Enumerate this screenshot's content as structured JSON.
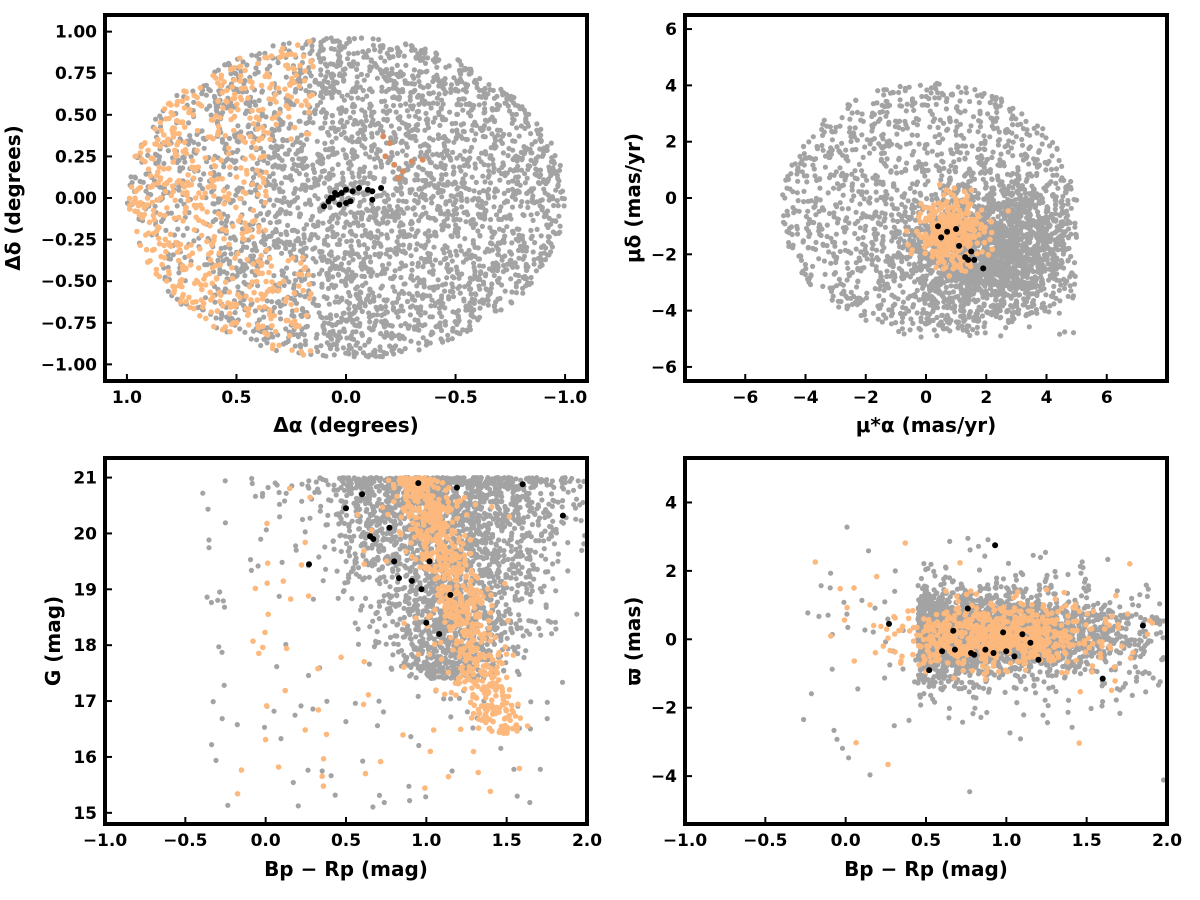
{
  "colors": {
    "field": "#a3a3a3",
    "member": "#fdb97d",
    "member_dark": "#d98c5f",
    "core": "#000000"
  },
  "chart_data": [
    {
      "type": "scatter",
      "panel": "top-left",
      "xlabel": "Δα (degrees)",
      "ylabel": "Δδ (degrees)",
      "xlim": [
        1.1,
        -1.1
      ],
      "ylim": [
        -1.1,
        1.1
      ],
      "x_inverted": true,
      "xticks": [
        1.0,
        0.5,
        0.0,
        -0.5,
        -1.0
      ],
      "xtick_labels": [
        "1.0",
        "0.5",
        "0.0",
        "−0.5",
        "−1.0"
      ],
      "yticks": [
        1.0,
        0.75,
        0.5,
        0.25,
        0.0,
        -0.25,
        -0.5,
        -0.75,
        -1.0
      ],
      "ytick_labels": [
        "1.00",
        "0.75",
        "0.50",
        "0.25",
        "0.00",
        "−0.25",
        "−0.50",
        "−0.75",
        "−1.00"
      ],
      "grid": false,
      "series": [
        {
          "role": "field",
          "description_points": "disk of radius 1 deg, ~3000 stars"
        },
        {
          "role": "members",
          "extent": "east half (Δα 0.2 to 1.0)"
        },
        {
          "role": "tidal-arm",
          "points": [
            [
              -0.18,
              0.25
            ],
            [
              -0.22,
              0.2
            ],
            [
              -0.26,
              0.16
            ],
            [
              -0.3,
              0.22
            ],
            [
              -0.35,
              0.23
            ],
            [
              -0.2,
              0.33
            ],
            [
              -0.17,
              0.37
            ],
            [
              -0.24,
              0.12
            ]
          ]
        },
        {
          "role": "core",
          "points": [
            [
              0.1,
              -0.05
            ],
            [
              0.08,
              -0.02
            ],
            [
              0.06,
              0.0
            ],
            [
              0.04,
              0.02
            ],
            [
              0.02,
              0.03
            ],
            [
              0.0,
              0.05
            ],
            [
              -0.03,
              0.04
            ],
            [
              -0.06,
              0.06
            ],
            [
              -0.1,
              0.05
            ],
            [
              -0.12,
              0.04
            ],
            [
              -0.16,
              0.06
            ],
            [
              0.0,
              -0.03
            ],
            [
              -0.02,
              -0.02
            ],
            [
              0.03,
              -0.04
            ],
            [
              0.07,
              0.0
            ],
            [
              -0.12,
              -0.01
            ],
            [
              0.05,
              0.03
            ]
          ]
        }
      ]
    },
    {
      "type": "scatter",
      "panel": "top-right",
      "xlabel": "μ*α  (mas/yr)",
      "ylabel": "μδ (mas/yr)",
      "xlim": [
        -8,
        8
      ],
      "ylim": [
        -6.5,
        6.5
      ],
      "xticks": [
        -6,
        -4,
        -2,
        0,
        2,
        4,
        6
      ],
      "xtick_labels": [
        "−6",
        "−4",
        "−2",
        "0",
        "2",
        "4",
        "6"
      ],
      "yticks": [
        6,
        4,
        2,
        0,
        -2,
        -4,
        -6
      ],
      "ytick_labels": [
        "6",
        "4",
        "2",
        "0",
        "−2",
        "−4",
        "−6"
      ],
      "grid": false,
      "series": [
        {
          "role": "field",
          "center": [
            1.9,
            -1.1
          ],
          "extent": "x -5 to 5, y -5 to 4.7"
        },
        {
          "role": "members",
          "center": [
            0.8,
            -1.2
          ]
        },
        {
          "role": "core",
          "points": [
            [
              0.4,
              -1.0
            ],
            [
              0.5,
              -1.4
            ],
            [
              1.0,
              -1.1
            ],
            [
              1.5,
              -1.9
            ],
            [
              1.4,
              -2.2
            ],
            [
              1.6,
              -2.2
            ],
            [
              1.9,
              -2.5
            ],
            [
              1.1,
              -1.7
            ],
            [
              0.7,
              -1.2
            ],
            [
              1.3,
              -2.1
            ]
          ]
        }
      ]
    },
    {
      "type": "scatter",
      "panel": "bottom-left",
      "xlabel": "Bp − Rp (mag)",
      "ylabel": "G (mag)",
      "xlim": [
        -1.0,
        2.0
      ],
      "ylim": [
        14.8,
        21.35
      ],
      "xticks": [
        -1.0,
        -0.5,
        0.0,
        0.5,
        1.0,
        1.5,
        2.0
      ],
      "xtick_labels": [
        "−1.0",
        "−0.5",
        "0.0",
        "0.5",
        "1.0",
        "1.5",
        "2.0"
      ],
      "yticks": [
        21,
        20,
        19,
        18,
        17,
        16,
        15
      ],
      "ytick_labels": [
        "21",
        "20",
        "19",
        "18",
        "17",
        "16",
        "15"
      ],
      "grid": false,
      "series": [
        {
          "role": "field"
        },
        {
          "role": "members"
        },
        {
          "role": "core",
          "points": [
            [
              0.5,
              20.45
            ],
            [
              0.6,
              20.7
            ],
            [
              0.65,
              19.95
            ],
            [
              0.67,
              19.9
            ],
            [
              0.77,
              20.1
            ],
            [
              0.27,
              19.45
            ],
            [
              0.8,
              19.5
            ],
            [
              0.95,
              20.9
            ],
            [
              1.19,
              20.82
            ],
            [
              1.6,
              20.88
            ],
            [
              1.85,
              20.32
            ],
            [
              1.02,
              19.5
            ],
            [
              0.97,
              19.0
            ],
            [
              0.91,
              19.15
            ],
            [
              1.15,
              18.9
            ],
            [
              1.08,
              18.2
            ],
            [
              1.0,
              18.4
            ],
            [
              0.83,
              19.2
            ]
          ]
        }
      ]
    },
    {
      "type": "scatter",
      "panel": "bottom-right",
      "xlabel": "Bp − Rp (mag)",
      "ylabel": "ϖ (mas)",
      "xlim": [
        -1.0,
        2.0
      ],
      "ylim": [
        -5.4,
        5.3
      ],
      "xticks": [
        -1.0,
        -0.5,
        0.0,
        0.5,
        1.0,
        1.5,
        2.0
      ],
      "xtick_labels": [
        "−1.0",
        "−0.5",
        "0.0",
        "0.5",
        "1.0",
        "1.5",
        "2.0"
      ],
      "yticks": [
        4,
        2,
        0,
        -2,
        -4
      ],
      "ytick_labels": [
        "4",
        "2",
        "0",
        "−2",
        "−4"
      ],
      "grid": false,
      "series": [
        {
          "role": "field"
        },
        {
          "role": "members"
        },
        {
          "role": "core",
          "points": [
            [
              0.27,
              0.45
            ],
            [
              0.52,
              -0.9
            ],
            [
              0.6,
              -0.35
            ],
            [
              0.67,
              0.25
            ],
            [
              0.68,
              -0.3
            ],
            [
              0.76,
              0.9
            ],
            [
              0.78,
              -0.4
            ],
            [
              0.8,
              -0.45
            ],
            [
              0.87,
              -0.3
            ],
            [
              0.93,
              2.75
            ],
            [
              0.98,
              0.2
            ],
            [
              1.0,
              -0.35
            ],
            [
              1.05,
              -0.5
            ],
            [
              1.1,
              0.15
            ],
            [
              1.15,
              -0.1
            ],
            [
              1.2,
              -0.6
            ],
            [
              1.6,
              -1.15
            ],
            [
              1.85,
              0.4
            ],
            [
              0.92,
              -0.4
            ]
          ]
        }
      ]
    }
  ]
}
